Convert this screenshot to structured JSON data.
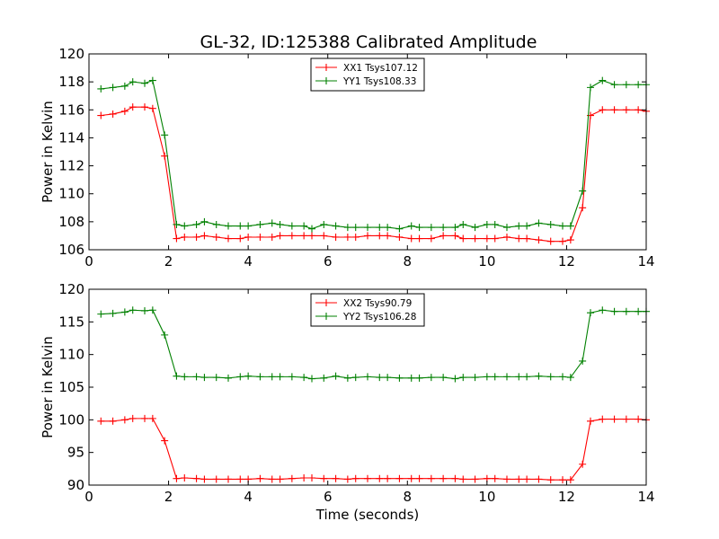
{
  "figure": {
    "title": "GL-32, ID:125388 Calibrated Amplitude"
  },
  "chart_data": [
    {
      "type": "line",
      "title": "GL-32, ID:125388 Calibrated Amplitude",
      "xlabel": "",
      "ylabel": "Power in Kelvin",
      "xlim": [
        0,
        14
      ],
      "ylim": [
        106,
        120
      ],
      "xticks": [
        0,
        2,
        4,
        6,
        8,
        10,
        12,
        14
      ],
      "yticks": [
        106,
        108,
        110,
        112,
        114,
        116,
        118,
        120
      ],
      "legend_position": "top-center",
      "grid": false,
      "x": [
        0.3,
        0.6,
        0.9,
        1.1,
        1.4,
        1.6,
        1.9,
        2.2,
        2.4,
        2.7,
        2.9,
        3.2,
        3.5,
        3.8,
        4.0,
        4.3,
        4.6,
        4.8,
        5.1,
        5.4,
        5.6,
        5.9,
        6.2,
        6.5,
        6.7,
        7.0,
        7.3,
        7.5,
        7.8,
        8.1,
        8.3,
        8.6,
        8.9,
        9.2,
        9.4,
        9.7,
        10.0,
        10.2,
        10.5,
        10.8,
        11.0,
        11.3,
        11.6,
        11.9,
        12.1,
        12.4,
        12.6,
        12.9,
        13.2,
        13.5,
        13.8,
        14.0
      ],
      "series": [
        {
          "name": "XX1 Tsys107.12",
          "color": "#ff0000",
          "values": [
            115.6,
            115.7,
            115.9,
            116.2,
            116.2,
            116.1,
            112.7,
            106.8,
            106.9,
            106.9,
            107.0,
            106.9,
            106.8,
            106.8,
            106.9,
            106.9,
            106.9,
            107.0,
            107.0,
            107.0,
            107.0,
            107.0,
            106.9,
            106.9,
            106.9,
            107.0,
            107.0,
            107.0,
            106.9,
            106.8,
            106.8,
            106.8,
            107.0,
            107.0,
            106.8,
            106.8,
            106.8,
            106.8,
            106.9,
            106.8,
            106.8,
            106.7,
            106.6,
            106.6,
            106.7,
            109.0,
            115.6,
            116.0,
            116.0,
            116.0,
            116.0,
            115.9
          ]
        },
        {
          "name": "YY1 Tsys108.33",
          "color": "#008000",
          "values": [
            117.5,
            117.6,
            117.7,
            118.0,
            117.9,
            118.1,
            114.2,
            107.8,
            107.7,
            107.8,
            108.0,
            107.8,
            107.7,
            107.7,
            107.7,
            107.8,
            107.9,
            107.8,
            107.7,
            107.7,
            107.5,
            107.8,
            107.7,
            107.6,
            107.6,
            107.6,
            107.6,
            107.6,
            107.5,
            107.7,
            107.6,
            107.6,
            107.6,
            107.6,
            107.8,
            107.6,
            107.8,
            107.8,
            107.6,
            107.7,
            107.7,
            107.9,
            107.8,
            107.7,
            107.7,
            110.2,
            117.6,
            118.1,
            117.8,
            117.8,
            117.8,
            117.8
          ]
        }
      ]
    },
    {
      "type": "line",
      "title": "",
      "xlabel": "Time (seconds)",
      "ylabel": "Power in Kelvin",
      "xlim": [
        0,
        14
      ],
      "ylim": [
        90,
        120
      ],
      "xticks": [
        0,
        2,
        4,
        6,
        8,
        10,
        12,
        14
      ],
      "yticks": [
        90,
        95,
        100,
        105,
        110,
        115,
        120
      ],
      "legend_position": "top-center",
      "grid": false,
      "x": [
        0.3,
        0.6,
        0.9,
        1.1,
        1.4,
        1.6,
        1.9,
        2.2,
        2.4,
        2.7,
        2.9,
        3.2,
        3.5,
        3.8,
        4.0,
        4.3,
        4.6,
        4.8,
        5.1,
        5.4,
        5.6,
        5.9,
        6.2,
        6.5,
        6.7,
        7.0,
        7.3,
        7.5,
        7.8,
        8.1,
        8.3,
        8.6,
        8.9,
        9.2,
        9.4,
        9.7,
        10.0,
        10.2,
        10.5,
        10.8,
        11.0,
        11.3,
        11.6,
        11.9,
        12.1,
        12.4,
        12.6,
        12.9,
        13.2,
        13.5,
        13.8,
        14.0
      ],
      "series": [
        {
          "name": "XX2 Tsys90.79",
          "color": "#ff0000",
          "values": [
            99.8,
            99.8,
            100.0,
            100.2,
            100.2,
            100.2,
            96.8,
            91.0,
            91.1,
            91.0,
            90.9,
            90.9,
            90.9,
            90.9,
            90.9,
            91.0,
            90.9,
            90.9,
            91.0,
            91.1,
            91.1,
            91.0,
            91.0,
            90.9,
            91.0,
            91.0,
            91.0,
            91.0,
            91.0,
            91.0,
            91.0,
            91.0,
            91.0,
            91.0,
            90.9,
            90.9,
            91.0,
            91.0,
            90.9,
            90.9,
            90.9,
            90.9,
            90.8,
            90.8,
            90.8,
            93.2,
            99.8,
            100.1,
            100.1,
            100.1,
            100.1,
            100.0
          ]
        },
        {
          "name": "YY2 Tsys106.28",
          "color": "#008000",
          "values": [
            116.2,
            116.3,
            116.5,
            116.8,
            116.7,
            116.8,
            113.0,
            106.7,
            106.6,
            106.6,
            106.5,
            106.5,
            106.4,
            106.6,
            106.7,
            106.6,
            106.6,
            106.6,
            106.6,
            106.5,
            106.3,
            106.4,
            106.7,
            106.4,
            106.5,
            106.6,
            106.5,
            106.5,
            106.4,
            106.4,
            106.4,
            106.5,
            106.5,
            106.3,
            106.5,
            106.5,
            106.6,
            106.6,
            106.6,
            106.6,
            106.6,
            106.7,
            106.6,
            106.6,
            106.5,
            109.0,
            116.4,
            116.8,
            116.6,
            116.6,
            116.6,
            116.6
          ]
        }
      ]
    }
  ]
}
